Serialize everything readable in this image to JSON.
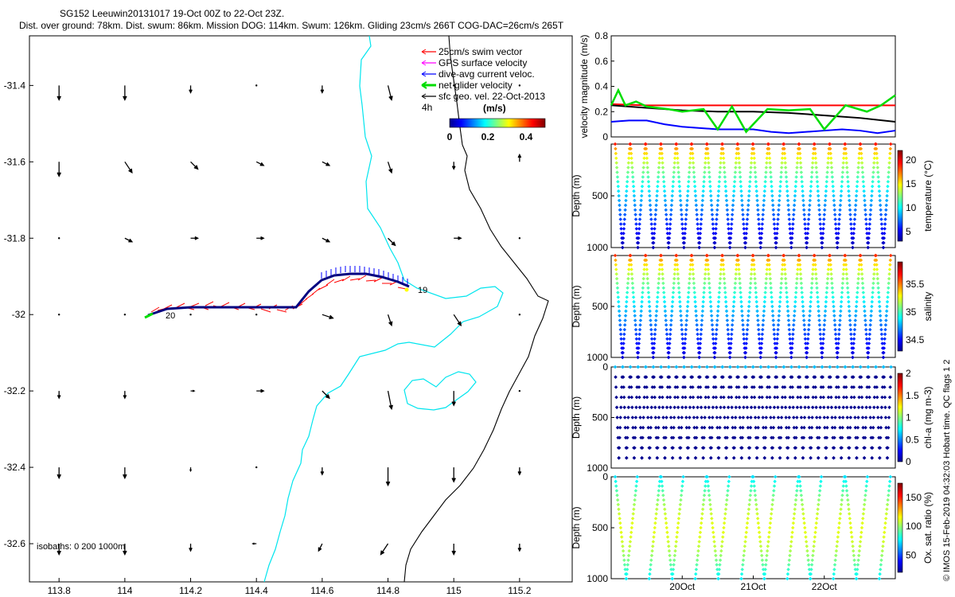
{
  "chart_data": [
    {
      "type": "map",
      "title": "SG152 Leeuwin20131017 19-Oct 00Z to 22-Oct 23Z.",
      "subtitle": "Dist. over ground: 78km. Dist. swum: 86km. Mission DOG: 114km. Swum: 126km. Gliding 23cm/s 266T COG-DAC=26cm/s 265T",
      "x_ticks": [
        "113.8",
        "114",
        "114.2",
        "114.4",
        "114.6",
        "114.8",
        "115",
        "115.2"
      ],
      "x_values": [
        113.8,
        114.0,
        114.2,
        114.4,
        114.6,
        114.8,
        115.0,
        115.2
      ],
      "y_ticks": [
        "-31.4",
        "-31.6",
        "-31.8",
        "-32",
        "-32.2",
        "-32.4",
        "-32.6"
      ],
      "y_values": [
        -31.4,
        -31.6,
        -31.8,
        -32.0,
        -32.2,
        -32.4,
        -32.6
      ],
      "xlim": [
        113.71,
        115.36
      ],
      "ylim": [
        -32.7,
        -31.27
      ],
      "legend": [
        {
          "label": "25cm/s swim vector",
          "color": "#ff0000"
        },
        {
          "label": "GPS surface velocity",
          "color": "#ff00ff"
        },
        {
          "label": "dive-avg current veloc.",
          "color": "#0000ff"
        },
        {
          "label": "net glider velocity",
          "color": "#00dd00"
        },
        {
          "label": "sfc geo. vel. 22-Oct-2013",
          "color": "#000000"
        }
      ],
      "legend_label_4h": "4h",
      "colorbar_title": "(m/s)",
      "colorbar_ticks": [
        "0",
        "0.2",
        "0.4"
      ],
      "colorbar_tick_values": [
        0,
        0.2,
        0.4
      ],
      "colorbar_range": [
        0,
        0.5
      ],
      "track_start_label": "20",
      "track_end_label": "19",
      "track_start": [
        114.07,
        -32.005
      ],
      "track_end": [
        114.83,
        -31.93
      ],
      "isobaths_label": "isobaths: 0   200  1000m",
      "vector_field": {
        "lons": [
          113.8,
          114.0,
          114.2,
          114.4,
          114.6,
          114.8,
          115.0,
          115.2
        ],
        "lats": [
          -31.4,
          -31.6,
          -31.8,
          -32.0,
          -32.2,
          -32.4,
          -32.6
        ],
        "u": [
          [
            0.0,
            0.0,
            0.0,
            0.0,
            0.0,
            0.01,
            0.0,
            0.0
          ],
          [
            0.0,
            0.02,
            0.02,
            0.02,
            0.02,
            0.01,
            0.0,
            0.0
          ],
          [
            0.0,
            0.02,
            0.02,
            0.02,
            0.02,
            0.02,
            0.02,
            0.0
          ],
          [
            0.0,
            0.0,
            0.0,
            0.0,
            0.03,
            0.01,
            0.02,
            0.0
          ],
          [
            0.0,
            0.0,
            0.01,
            0.02,
            0.02,
            0.01,
            0.0,
            0.0
          ],
          [
            0.0,
            0.0,
            0.0,
            0.0,
            0.0,
            0.0,
            0.0,
            0.0
          ],
          [
            0.0,
            0.0,
            0.0,
            -0.01,
            -0.01,
            -0.02,
            0.0,
            0.0
          ]
        ],
        "v": [
          [
            -0.04,
            -0.04,
            -0.02,
            0.0,
            -0.02,
            -0.04,
            0.0,
            0.0
          ],
          [
            -0.04,
            -0.03,
            -0.02,
            -0.01,
            -0.01,
            -0.03,
            -0.02,
            0.02
          ],
          [
            0.0,
            -0.01,
            0.0,
            0.0,
            -0.01,
            -0.02,
            0.0,
            0.0
          ],
          [
            0.0,
            0.0,
            0.0,
            0.0,
            -0.01,
            -0.03,
            -0.03,
            0.0
          ],
          [
            -0.02,
            -0.02,
            0.0,
            0.0,
            -0.02,
            -0.05,
            -0.04,
            0.0
          ],
          [
            -0.03,
            -0.03,
            -0.01,
            0.0,
            -0.02,
            -0.05,
            -0.04,
            -0.02
          ],
          [
            -0.03,
            -0.03,
            -0.02,
            0.0,
            -0.02,
            -0.03,
            -0.03,
            -0.02
          ]
        ]
      }
    },
    {
      "type": "line",
      "ylabel": "velocity magnitude (m/s)",
      "ylim": [
        0,
        0.8
      ],
      "y_ticks": [
        "0",
        "0.2",
        "0.4",
        "0.6",
        "0.8"
      ],
      "y_values": [
        0,
        0.2,
        0.4,
        0.6,
        0.8
      ],
      "xlim": [
        0,
        4
      ],
      "series": [
        {
          "name": "swim",
          "color": "#ff0000",
          "x": [
            0,
            0.5,
            1,
            1.5,
            2,
            2.5,
            3,
            3.5,
            4
          ],
          "values": [
            0.26,
            0.25,
            0.25,
            0.25,
            0.25,
            0.25,
            0.25,
            0.25,
            0.25
          ]
        },
        {
          "name": "sfc geo",
          "color": "#000000",
          "x": [
            0,
            0.5,
            1,
            1.5,
            2,
            2.5,
            3,
            3.5,
            4
          ],
          "values": [
            0.25,
            0.23,
            0.21,
            0.2,
            0.2,
            0.19,
            0.17,
            0.15,
            0.12
          ]
        },
        {
          "name": "dive-avg current",
          "color": "#0000ff",
          "x": [
            0,
            0.25,
            0.5,
            0.75,
            1,
            1.25,
            1.5,
            1.75,
            2,
            2.25,
            2.5,
            2.75,
            3,
            3.25,
            3.5,
            3.75,
            4
          ],
          "values": [
            0.12,
            0.13,
            0.13,
            0.1,
            0.08,
            0.07,
            0.06,
            0.06,
            0.06,
            0.04,
            0.03,
            0.04,
            0.05,
            0.06,
            0.05,
            0.03,
            0.05
          ]
        },
        {
          "name": "net glider",
          "color": "#00dd00",
          "x": [
            0,
            0.1,
            0.2,
            0.35,
            0.5,
            0.8,
            1.0,
            1.3,
            1.5,
            1.7,
            1.9,
            2.2,
            2.5,
            2.8,
            3.0,
            3.3,
            3.6,
            3.8,
            4
          ],
          "values": [
            0.25,
            0.37,
            0.25,
            0.28,
            0.24,
            0.22,
            0.2,
            0.22,
            0.06,
            0.24,
            0.04,
            0.22,
            0.21,
            0.22,
            0.06,
            0.25,
            0.2,
            0.25,
            0.33
          ]
        }
      ]
    },
    {
      "type": "scatter",
      "ylabel": "Depth (m)",
      "y_ticks": [
        "500",
        "1000"
      ],
      "y_values": [
        500,
        1000
      ],
      "ylim": [
        1000,
        0
      ],
      "colorbar_label": "temperature (°C)",
      "colorbar_ticks": [
        "5",
        "10",
        "15",
        "20"
      ],
      "colorbar_tick_values": [
        5,
        10,
        15,
        20
      ],
      "colorbar_range": [
        3,
        22
      ],
      "profiles": 18,
      "max_depth": 1000
    },
    {
      "type": "scatter",
      "ylabel": "Depth (m)",
      "y_ticks": [
        "500",
        "1000"
      ],
      "y_values": [
        500,
        1000
      ],
      "ylim": [
        1000,
        0
      ],
      "colorbar_label": "salinity",
      "colorbar_ticks": [
        "34.5",
        "35",
        "35.5"
      ],
      "colorbar_tick_values": [
        34.5,
        35,
        35.5
      ],
      "colorbar_range": [
        34.3,
        35.9
      ],
      "profiles": 18,
      "max_depth": 1000
    },
    {
      "type": "scatter",
      "ylabel": "Depth (m)",
      "y_ticks": [
        "0",
        "500",
        "1000"
      ],
      "y_values": [
        0,
        500,
        1000
      ],
      "ylim": [
        1000,
        0
      ],
      "colorbar_label": "chl-a (mg m-3)",
      "colorbar_ticks": [
        "0",
        "0.5",
        "1",
        "1.5",
        "2"
      ],
      "colorbar_tick_values": [
        0,
        0.5,
        1,
        1.5,
        2
      ],
      "colorbar_range": [
        0,
        2
      ],
      "profiles": 36,
      "max_depth": 900
    },
    {
      "type": "scatter",
      "ylabel": "Depth (m)",
      "y_ticks": [
        "0",
        "500",
        "1000"
      ],
      "y_values": [
        0,
        500,
        1000
      ],
      "ylim": [
        1000,
        0
      ],
      "colorbar_label": "Ox. sat. ratio (%)",
      "colorbar_ticks": [
        "50",
        "100",
        "150"
      ],
      "colorbar_tick_values": [
        50,
        100,
        150
      ],
      "colorbar_range": [
        20,
        175
      ],
      "profiles": 12,
      "max_depth": 1000,
      "x_ticks": [
        "20Oct",
        "21Oct",
        "22Oct"
      ],
      "x_values": [
        1,
        2,
        3
      ],
      "xlim": [
        0,
        4
      ]
    }
  ],
  "side_note": "© IMOS 15-Feb-2019 04:32:03 Hobart time. QC flags 1  2",
  "colors": {
    "coast": "#000000",
    "isobath": "#00e5ee",
    "swim": "#ff0000",
    "current": "#0000ff",
    "net": "#00dd00"
  }
}
